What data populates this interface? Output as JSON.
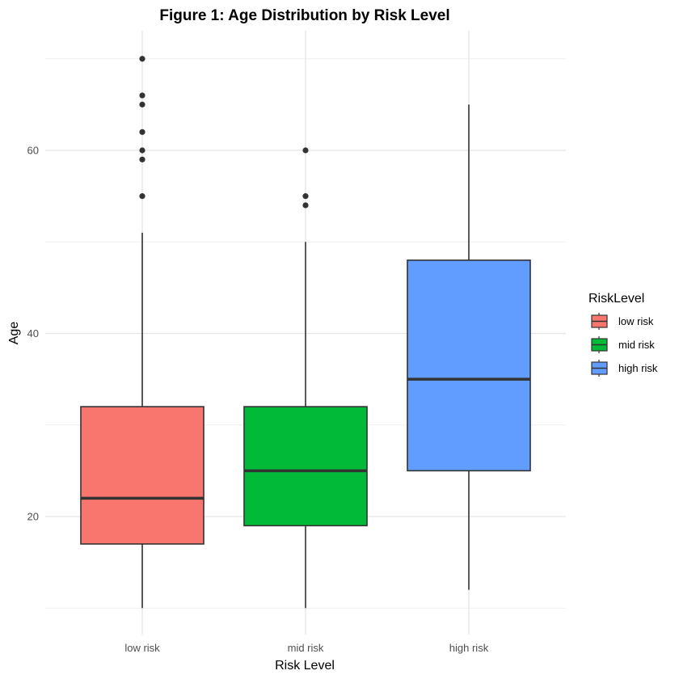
{
  "chart_data": {
    "type": "box",
    "title": "Figure 1: Age Distribution by Risk Level",
    "xlabel": "Risk Level",
    "ylabel": "Age",
    "categories": [
      "low risk",
      "mid risk",
      "high risk"
    ],
    "y_ticks": [
      20,
      40,
      60
    ],
    "ylim": [
      10,
      70
    ],
    "grid": true,
    "legend": {
      "title": "RiskLevel",
      "placement": "right",
      "entries": [
        "low risk",
        "mid risk",
        "high risk"
      ]
    },
    "colors": [
      "#F8766D",
      "#00BA38",
      "#619CFF"
    ],
    "series": [
      {
        "name": "low risk",
        "whisker_low": 10,
        "q1": 17,
        "median": 22,
        "q3": 32,
        "whisker_high": 51,
        "outliers": [
          55,
          59,
          60,
          62,
          65,
          66,
          70
        ]
      },
      {
        "name": "mid risk",
        "whisker_low": 10,
        "q1": 19,
        "median": 25,
        "q3": 32,
        "whisker_high": 50,
        "outliers": [
          54,
          55,
          60
        ]
      },
      {
        "name": "high risk",
        "whisker_low": 12,
        "q1": 25,
        "median": 35,
        "q3": 48,
        "whisker_high": 65,
        "outliers": []
      }
    ]
  }
}
